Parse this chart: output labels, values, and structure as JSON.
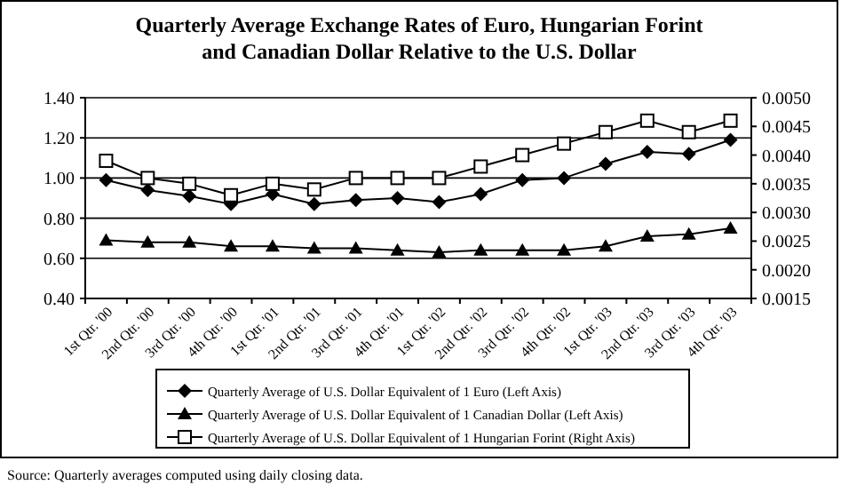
{
  "chart_data": {
    "type": "line",
    "title": "Quarterly Average Exchange Rates of Euro, Hungarian Forint and Canadian Dollar Relative to the U.S. Dollar",
    "categories": [
      "1st Qtr. '00",
      "2nd Qtr. '00",
      "3rd Qtr. '00",
      "4th Qtr. '00",
      "1st Qtr. '01",
      "2nd Qtr. '01",
      "3rd Qtr. '01",
      "4th Qtr. '01",
      "1st Qtr. '02",
      "2nd Qtr. '02",
      "3rd Qtr. '02",
      "4th Qtr. '02",
      "1st Qtr. '03",
      "2nd Qtr. '03",
      "3rd Qtr. '03",
      "4th Qtr. '03"
    ],
    "series": [
      {
        "name": "Quarterly Average of U.S. Dollar Equivalent of 1 Euro (Left Axis)",
        "color": "#000000",
        "marker": "diamond",
        "values": [
          0.99,
          0.94,
          0.91,
          0.87,
          0.92,
          0.87,
          0.89,
          0.9,
          0.88,
          0.92,
          0.99,
          1.0,
          1.07,
          1.13,
          1.12,
          1.19
        ]
      },
      {
        "name": "Quarterly Average of U.S. Dollar Equivalent of 1 Canadian Dollar (Left Axis)",
        "color": "#000000",
        "marker": "triangle",
        "values": [
          0.69,
          0.68,
          0.68,
          0.66,
          0.66,
          0.65,
          0.65,
          0.64,
          0.63,
          0.64,
          0.64,
          0.64,
          0.66,
          0.71,
          0.72,
          0.75
        ]
      },
      {
        "name": "Quarterly Average of U.S. Dollar Equivalent of 1 Hungarian Forint (Right Axis)",
        "color": "#000000",
        "marker": "square",
        "axis": "y2",
        "values": [
          0.0039,
          0.0036,
          0.0035,
          0.0033,
          0.0035,
          0.0034,
          0.0036,
          0.0036,
          0.0036,
          0.0038,
          0.004,
          0.0042,
          0.0044,
          0.0046,
          0.0044,
          0.0046
        ]
      }
    ],
    "ylim": [
      0.4,
      1.4
    ],
    "yticks": [
      {
        "value": 0.4,
        "label": "0.40"
      },
      {
        "value": 0.6,
        "label": "0.60"
      },
      {
        "value": 0.8,
        "label": "0.80"
      },
      {
        "value": 1.0,
        "label": "1.00"
      },
      {
        "value": 1.2,
        "label": "1.20"
      },
      {
        "value": 1.4,
        "label": "1.40"
      }
    ],
    "y2lim": [
      0.0015,
      0.005
    ],
    "y2ticks": [
      {
        "value": 0.0015,
        "label": "0.0015"
      },
      {
        "value": 0.002,
        "label": "0.0020"
      },
      {
        "value": 0.0025,
        "label": "0.0025"
      },
      {
        "value": 0.003,
        "label": "0.0030"
      },
      {
        "value": 0.0035,
        "label": "0.0035"
      },
      {
        "value": 0.004,
        "label": "0.0040"
      },
      {
        "value": 0.0045,
        "label": "0.0045"
      },
      {
        "value": 0.005,
        "label": "0.0050"
      }
    ],
    "grid": "y",
    "legend": "bottom",
    "annotations": [
      "Source:  Quarterly averages computed using daily closing data."
    ]
  }
}
